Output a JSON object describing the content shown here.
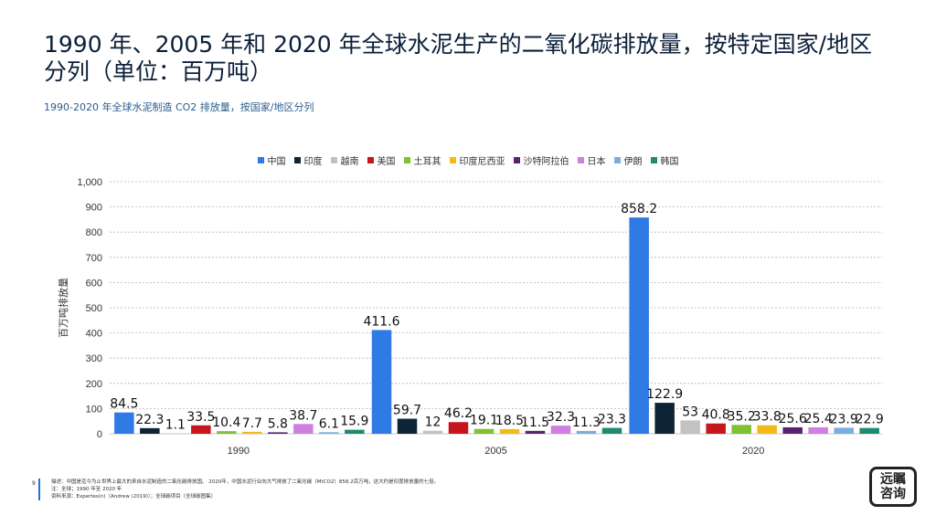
{
  "title": "1990 年、2005 年和 2020 年全球水泥生产的二氧化碳排放量，按特定国家/地区分列（单位：百万吨）",
  "subtitle": "1990-2020 年全球水泥制造 CO2 排放量，按国家/地区分列",
  "page_number": "9",
  "footer": {
    "description": "描述：中国是迄今为止世界上最大的来自水泥制造的二氧化碳排放国。 2020年，中国水泥行业向大气排放了二氧化碳（MtCO2）858.2百万吨，这大约是印度排放量的七倍。",
    "note": "注：全球；1990 年至 2020 年",
    "source": "资料来源：Expertes(n)（Andrew (2019)）；全球碳项目（全球碳图集）"
  },
  "logo": {
    "line1": "远瞩",
    "line2": "咨询"
  },
  "chart_data": {
    "type": "bar",
    "categories": [
      "1990",
      "2005",
      "2020"
    ],
    "ylabel": "百万吨排放量",
    "ylim": [
      0,
      1000
    ],
    "yticks": [
      0,
      100,
      200,
      300,
      400,
      500,
      600,
      700,
      800,
      900,
      1000
    ],
    "ytick_labels": [
      "0",
      "100",
      "200",
      "300",
      "400",
      "500",
      "600",
      "700",
      "800",
      "900",
      "1,000"
    ],
    "grid": true,
    "legend_position": "top-center",
    "series": [
      {
        "name": "中国",
        "color": "#2f7ae5",
        "values": [
          84.5,
          411.6,
          858.2
        ]
      },
      {
        "name": "印度",
        "color": "#0d2437",
        "values": [
          22.3,
          59.7,
          122.9
        ]
      },
      {
        "name": "越南",
        "color": "#c2c2c2",
        "values": [
          1.1,
          12,
          53
        ]
      },
      {
        "name": "美国",
        "color": "#c8151d",
        "values": [
          33.5,
          46.2,
          40.8
        ]
      },
      {
        "name": "土耳其",
        "color": "#7ec233",
        "values": [
          10.4,
          19.1,
          35.2
        ]
      },
      {
        "name": "印度尼西亚",
        "color": "#f5b916",
        "values": [
          7.7,
          18.5,
          33.8
        ]
      },
      {
        "name": "沙特阿拉伯",
        "color": "#5a2372",
        "values": [
          5.8,
          11.5,
          25.6
        ]
      },
      {
        "name": "日本",
        "color": "#cf7fe0",
        "values": [
          38.7,
          32.3,
          25.4
        ]
      },
      {
        "name": "伊朗",
        "color": "#7aaee0",
        "values": [
          6.1,
          11.3,
          23.9
        ]
      },
      {
        "name": "韩国",
        "color": "#1d8a72",
        "values": [
          15.9,
          23.3,
          22.9
        ]
      }
    ]
  }
}
